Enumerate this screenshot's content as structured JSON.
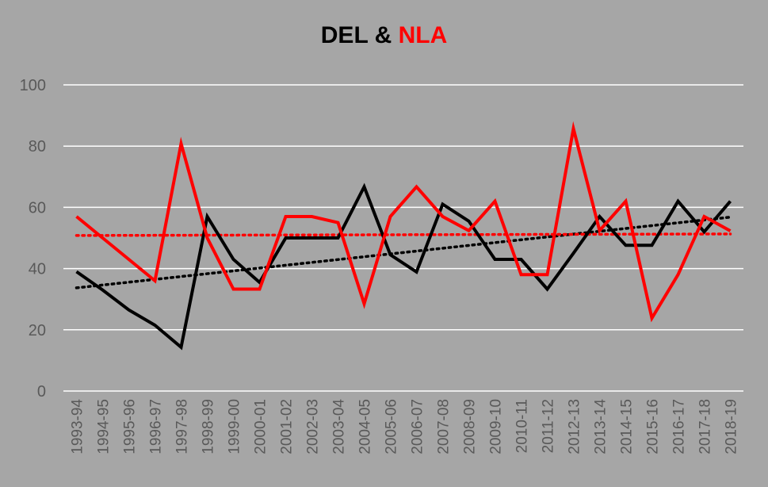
{
  "chart_data": {
    "type": "line",
    "title": {
      "part1": "DEL",
      "connector": " & ",
      "part2": "NLA"
    },
    "categories": [
      "1993-94",
      "1994-95",
      "1995-96",
      "1996-97",
      "1997-98",
      "1998-99",
      "1999-00",
      "2000-01",
      "2001-02",
      "2002-03",
      "2003-04",
      "2004-05",
      "2005-06",
      "2006-07",
      "2007-08",
      "2008-09",
      "2009-10",
      "2010-11",
      "2011-12",
      "2012-13",
      "2013-14",
      "2014-15",
      "2015-16",
      "2016-17",
      "2017-18",
      "2018-19"
    ],
    "ylim": [
      0,
      100
    ],
    "yticks": [
      0,
      20,
      40,
      60,
      80,
      100
    ],
    "grid": true,
    "legend": "none",
    "series": [
      {
        "key": "del",
        "color": "#000000",
        "values": [
          39,
          33,
          26.5,
          21.5,
          14.3,
          57,
          43,
          35.5,
          50,
          50,
          50,
          66.7,
          44.5,
          38.9,
          61,
          55.5,
          43,
          43,
          33.3,
          45,
          57,
          47.6,
          47.6,
          62,
          52,
          62
        ],
        "trendline": {
          "style": "dotted",
          "from": 33.7,
          "to": 56.8
        }
      },
      {
        "key": "nla",
        "color": "#ff0000",
        "values": [
          57,
          50,
          43,
          36,
          80.8,
          50,
          33.3,
          33.3,
          57,
          57,
          55,
          28.5,
          57,
          66.7,
          57,
          52.4,
          62,
          38,
          38,
          85.7,
          52.4,
          62,
          23.8,
          38,
          57,
          52.3
        ],
        "trendline": {
          "style": "dotted",
          "from": 50.8,
          "to": 51.3
        }
      }
    ]
  }
}
